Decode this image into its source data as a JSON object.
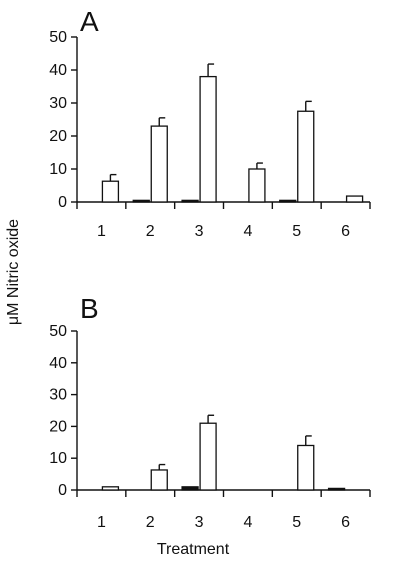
{
  "chart_data": [
    {
      "type": "bar",
      "panel_label": "A",
      "categories": [
        "1",
        "2",
        "3",
        "4",
        "5",
        "6"
      ],
      "ylim": [
        0,
        50
      ],
      "yticks": [
        0,
        10,
        20,
        30,
        40,
        50
      ],
      "series": [
        {
          "fill": "#111111",
          "values": [
            0,
            0.5,
            0.5,
            0,
            0.5,
            0
          ]
        },
        {
          "fill": "#ffffff",
          "values": [
            6.3,
            23,
            38,
            10,
            27.5,
            1.8
          ],
          "errors": [
            2,
            2.5,
            3.8,
            1.8,
            3,
            null
          ]
        }
      ]
    },
    {
      "type": "bar",
      "panel_label": "B",
      "categories": [
        "1",
        "2",
        "3",
        "4",
        "5",
        "6"
      ],
      "ylim": [
        0,
        50
      ],
      "yticks": [
        0,
        10,
        20,
        30,
        40,
        50
      ],
      "series": [
        {
          "fill": "#111111",
          "values": [
            0,
            0,
            1,
            0,
            0,
            0.5
          ]
        },
        {
          "fill": "#ffffff",
          "values": [
            1,
            6.3,
            21,
            0,
            14,
            0
          ],
          "errors": [
            null,
            1.7,
            2.5,
            null,
            3,
            null
          ]
        }
      ]
    }
  ],
  "shared": {
    "ylabel": "μM Nitric oxide",
    "xlabel": "Treatment"
  }
}
